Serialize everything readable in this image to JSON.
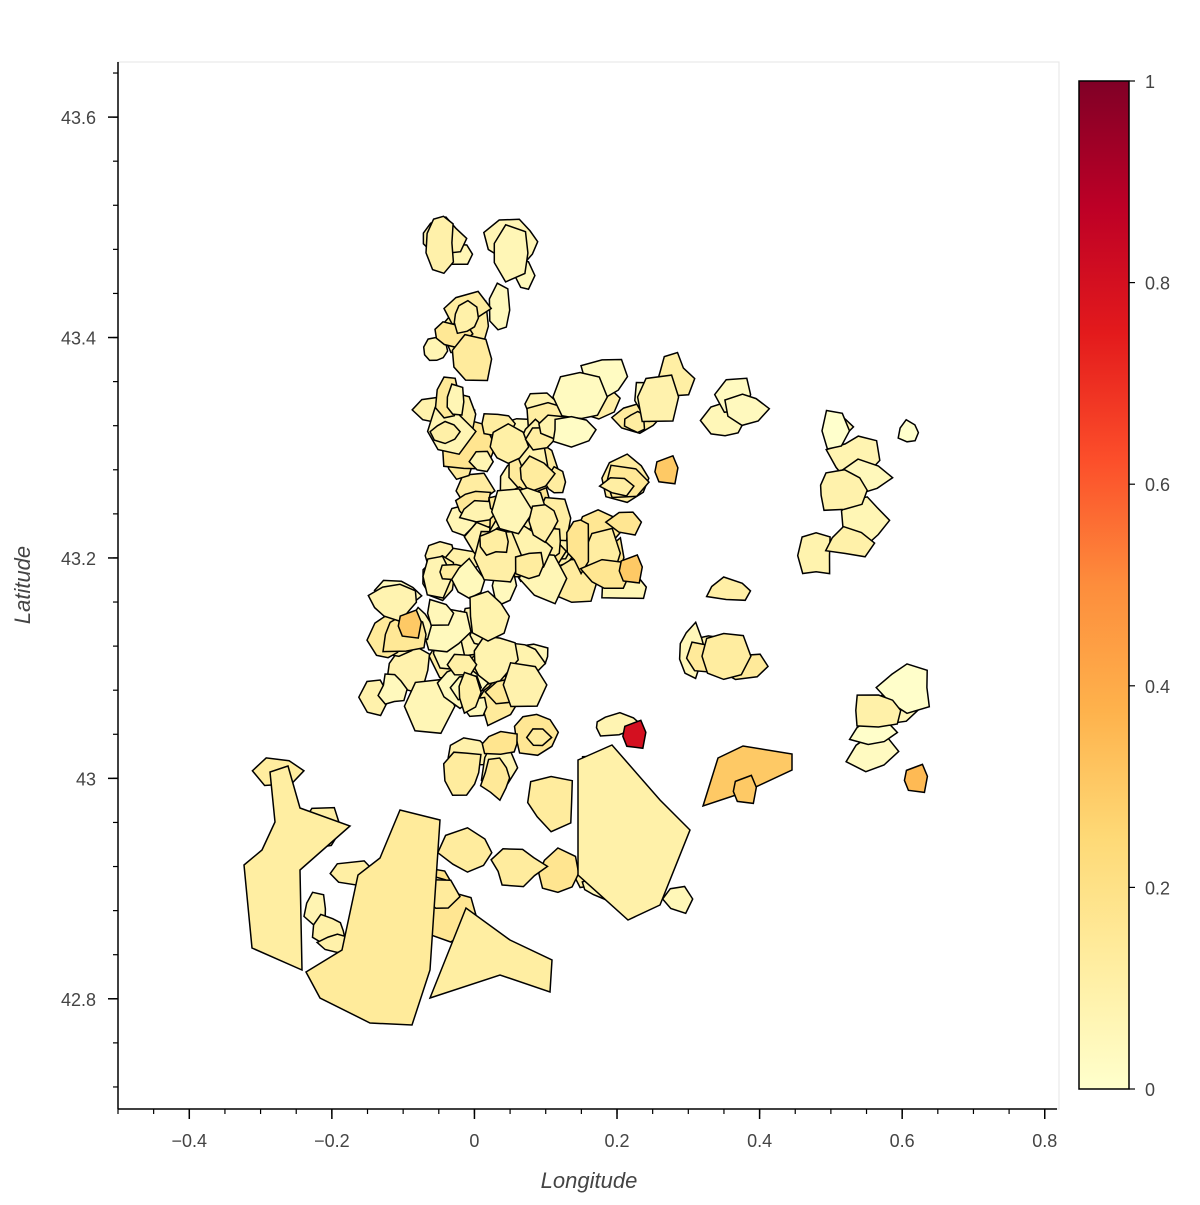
{
  "map": {
    "xlabel": "Longitude",
    "ylabel": "Latitude",
    "xlim": [
      -0.5,
      0.82
    ],
    "ylim": [
      42.7,
      43.65
    ],
    "x_ticks": [
      {
        "value": -0.4,
        "label": "−0.4"
      },
      {
        "value": -0.2,
        "label": "−0.2"
      },
      {
        "value": 0,
        "label": "0"
      },
      {
        "value": 0.2,
        "label": "0.2"
      },
      {
        "value": 0.4,
        "label": "0.4"
      },
      {
        "value": 0.6,
        "label": "0.6"
      },
      {
        "value": 0.8,
        "label": "0.8"
      }
    ],
    "y_ticks": [
      {
        "value": 42.8,
        "label": "42.8"
      },
      {
        "value": 43,
        "label": "43"
      },
      {
        "value": 43.2,
        "label": "43.2"
      },
      {
        "value": 43.4,
        "label": "43.4"
      },
      {
        "value": 43.6,
        "label": "43.6"
      }
    ],
    "colorbar": {
      "palette": [
        "#ffffcc",
        "#ffeda0",
        "#fed976",
        "#feb24c",
        "#fd8d3c",
        "#fc4e2a",
        "#e31a1c",
        "#bd0026",
        "#800026"
      ],
      "range": [
        0,
        1
      ],
      "ticks": [
        {
          "value": 0,
          "label": "0"
        },
        {
          "value": 0.2,
          "label": "0.2"
        },
        {
          "value": 0.4,
          "label": "0.4"
        },
        {
          "value": 0.6,
          "label": "0.6"
        },
        {
          "value": 0.8,
          "label": "0.8"
        },
        {
          "value": 1,
          "label": "1"
        }
      ]
    },
    "outline_color": "#000000",
    "highlighted_regions": [
      {
        "lon": 0.225,
        "lat": 43.04,
        "value": 0.8
      },
      {
        "lon": 0.38,
        "lat": 42.99,
        "value": 0.3
      },
      {
        "lon": 0.22,
        "lat": 43.19,
        "value": 0.3
      },
      {
        "lon": 0.62,
        "lat": 43.0,
        "value": 0.35
      },
      {
        "lon": 0.27,
        "lat": 43.28,
        "value": 0.3
      },
      {
        "lon": -0.09,
        "lat": 43.14,
        "value": 0.3
      }
    ]
  }
}
